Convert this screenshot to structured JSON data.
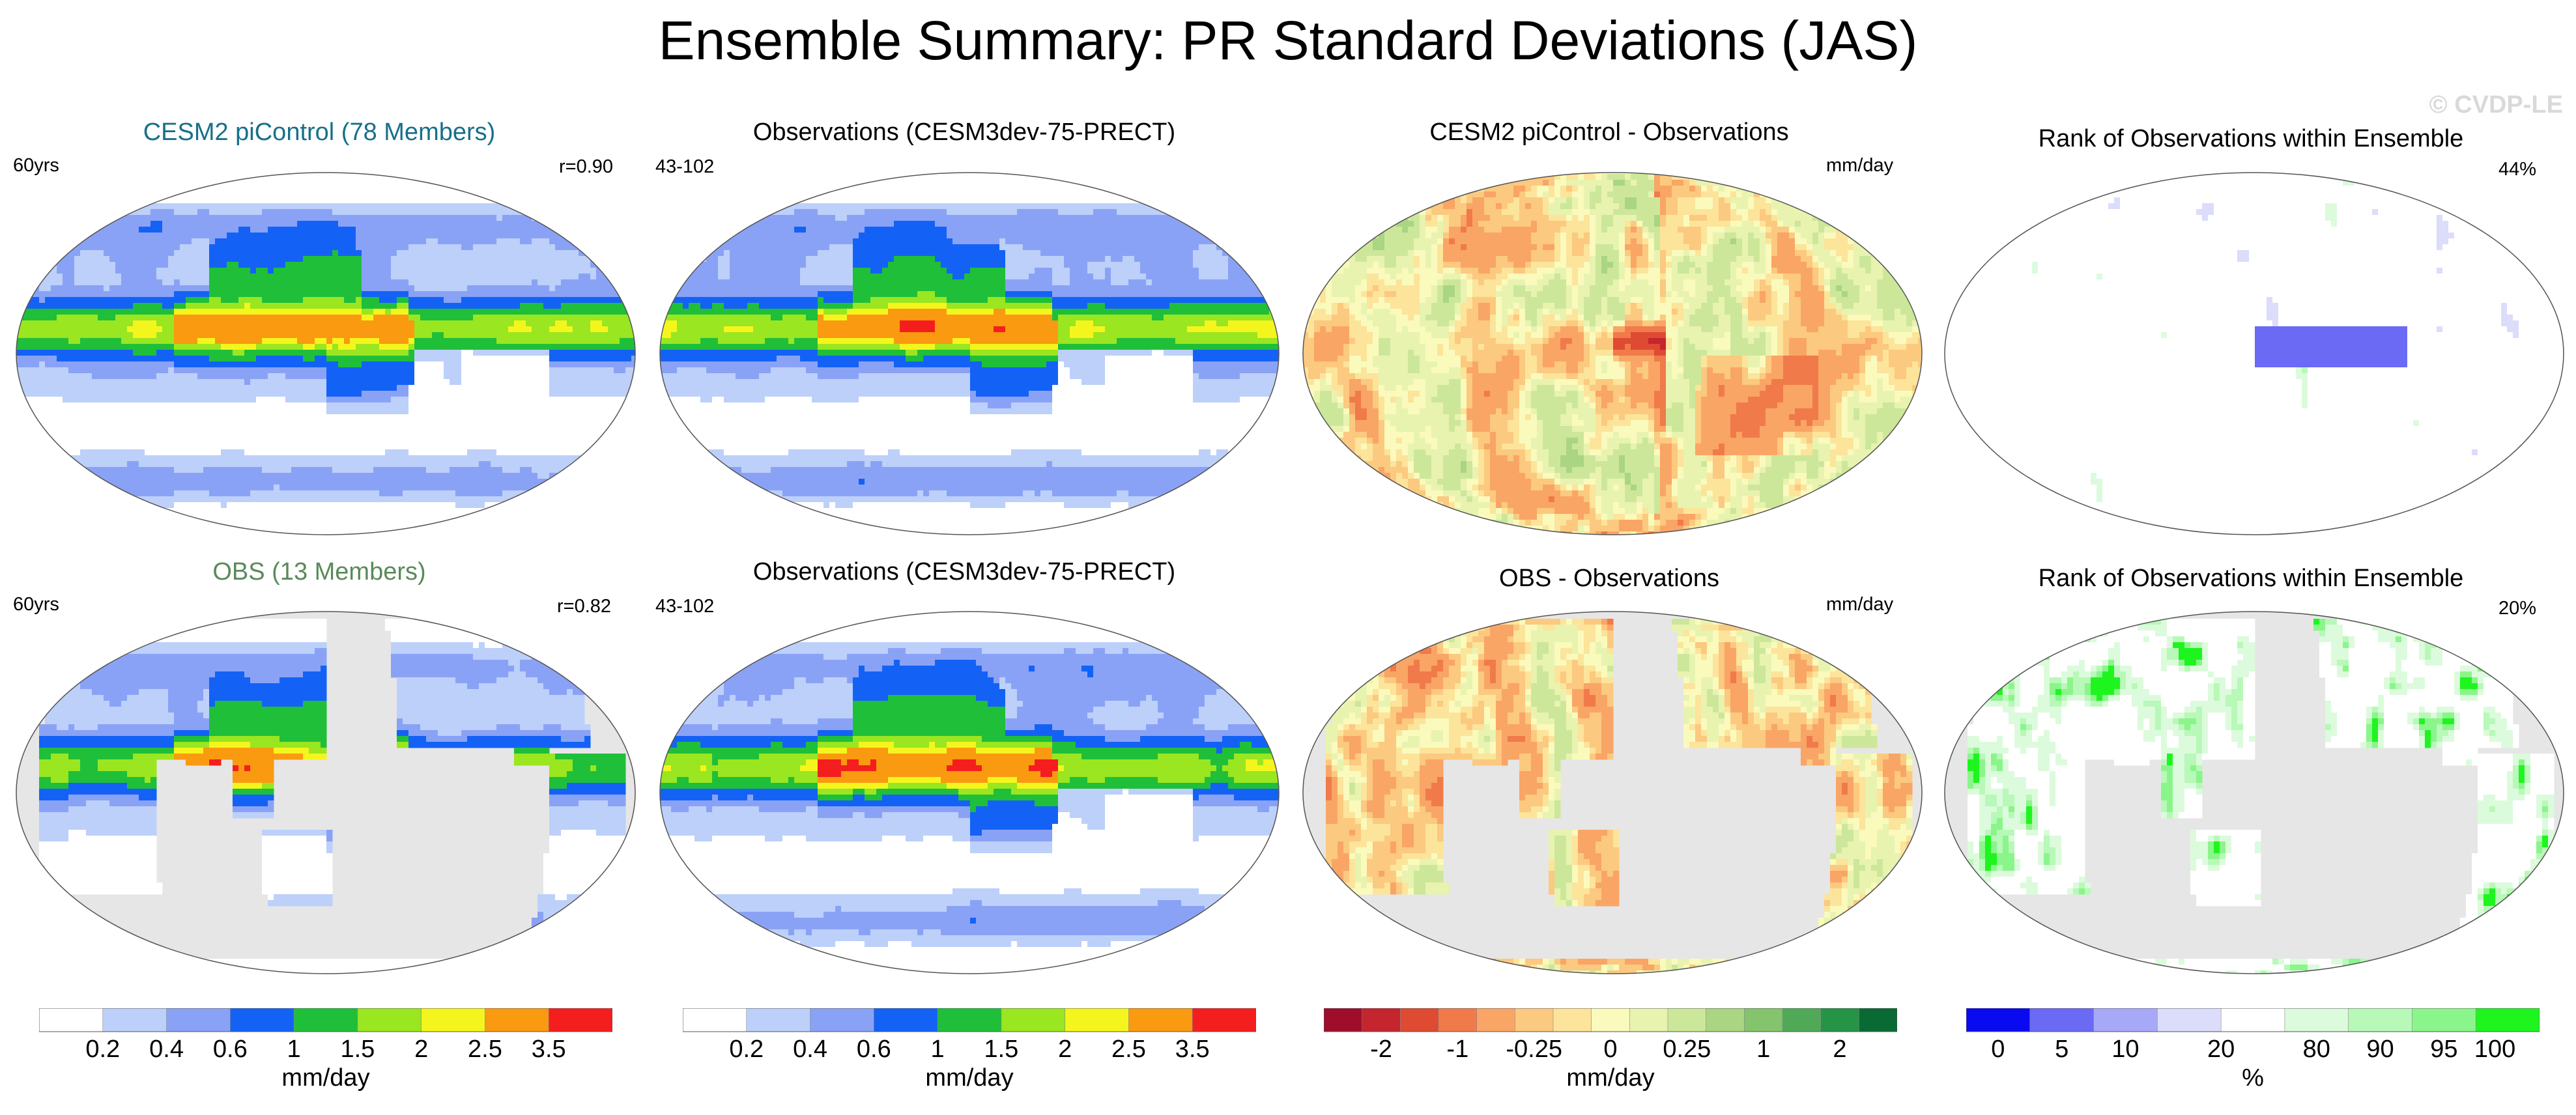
{
  "title": "Ensemble Summary: PR Standard Deviations (JAS)",
  "watermark": "© CVDP-LE",
  "colors": {
    "cesm_title": "#17708a",
    "obs_title": "#5a8a5a",
    "land_gray": "#e6e6e6"
  },
  "panels": [
    {
      "title": "CESM2 piControl (78 Members)",
      "title_color": "#17708a",
      "left_text": "60yrs",
      "right_text": "r=0.90",
      "kind": "std_full"
    },
    {
      "title": "Observations (CESM3dev-75-PRECT)",
      "title_color": "#000000",
      "left_text": "43-102",
      "right_text": "",
      "kind": "std_obs"
    },
    {
      "title": "CESM2 piControl - Observations",
      "title_color": "#000000",
      "left_text": "",
      "right_text": "mm/day",
      "kind": "diff_full"
    },
    {
      "title": "Rank of Observations within Ensemble",
      "title_color": "#000000",
      "left_text": "",
      "right_text": "44%",
      "kind": "rank_full"
    },
    {
      "title": "OBS (13 Members)",
      "title_color": "#5a8a5a",
      "left_text": "60yrs",
      "right_text": "r=0.82",
      "kind": "std_land"
    },
    {
      "title": "Observations (CESM3dev-75-PRECT)",
      "title_color": "#000000",
      "left_text": "43-102",
      "right_text": "",
      "kind": "std_obs"
    },
    {
      "title": "OBS - Observations",
      "title_color": "#000000",
      "left_text": "",
      "right_text": "mm/day",
      "kind": "diff_land"
    },
    {
      "title": "Rank of Observations within Ensemble",
      "title_color": "#000000",
      "left_text": "",
      "right_text": "20%",
      "kind": "rank_land"
    }
  ],
  "chart_data": [
    {
      "type": "heatmap",
      "name": "std_colorbar",
      "unit": "mm/day",
      "levels": [
        0.2,
        0.4,
        0.6,
        1,
        1.5,
        2,
        2.5,
        3.5
      ],
      "tick_labels": [
        "0.2",
        "0.4",
        "0.6",
        "1",
        "1.5",
        "2",
        "2.5",
        "3.5"
      ],
      "colors": [
        "#ffffff",
        "#bcd0fa",
        "#8aa2f5",
        "#1462f5",
        "#1fbf3a",
        "#9ae620",
        "#f5f51e",
        "#fa9a10",
        "#f51e1e"
      ]
    },
    {
      "type": "heatmap",
      "name": "diff_colorbar",
      "unit": "mm/day",
      "levels": [
        -3,
        -2,
        -1.5,
        -1,
        -0.5,
        -0.25,
        -0.1,
        0,
        0.1,
        0.25,
        0.5,
        1,
        1.5,
        2,
        3
      ],
      "tick_labels": [
        "-2",
        "-1",
        "-0.25",
        "0",
        "0.25",
        "1",
        "2"
      ],
      "colors": [
        "#9e0e2a",
        "#c4252f",
        "#de4a32",
        "#f07a4a",
        "#f9a566",
        "#fbc97f",
        "#fce49b",
        "#fafabd",
        "#e8f3b0",
        "#cde79a",
        "#aad582",
        "#84c46c",
        "#4fa957",
        "#259447",
        "#0a6a34"
      ]
    },
    {
      "type": "heatmap",
      "name": "rank_colorbar",
      "unit": "%",
      "levels": [
        0,
        5,
        10,
        20,
        80,
        90,
        95,
        100
      ],
      "tick_labels": [
        "0",
        "5",
        "10",
        "20",
        "80",
        "90",
        "95",
        "100"
      ],
      "colors": [
        "#0a0af0",
        "#6a6af5",
        "#a8a8f8",
        "#dcdcfb",
        "#ffffff",
        "#dcfbdc",
        "#b8f8b8",
        "#8af58a",
        "#1ef51e"
      ]
    }
  ],
  "colorbars": [
    {
      "labels": [
        "0.2",
        "0.4",
        "0.6",
        "1",
        "1.5",
        "2",
        "2.5",
        "3.5"
      ],
      "unit": "mm/day"
    },
    {
      "labels": [
        "0.2",
        "0.4",
        "0.6",
        "1",
        "1.5",
        "2",
        "2.5",
        "3.5"
      ],
      "unit": "mm/day"
    },
    {
      "labels": [
        "-2",
        "-1",
        "-0.25",
        "0",
        "0.25",
        "1",
        "2"
      ],
      "unit": "mm/day"
    },
    {
      "labels": [
        "0",
        "5",
        "10",
        "20",
        "80",
        "90",
        "95",
        "100"
      ],
      "unit": "%"
    }
  ]
}
